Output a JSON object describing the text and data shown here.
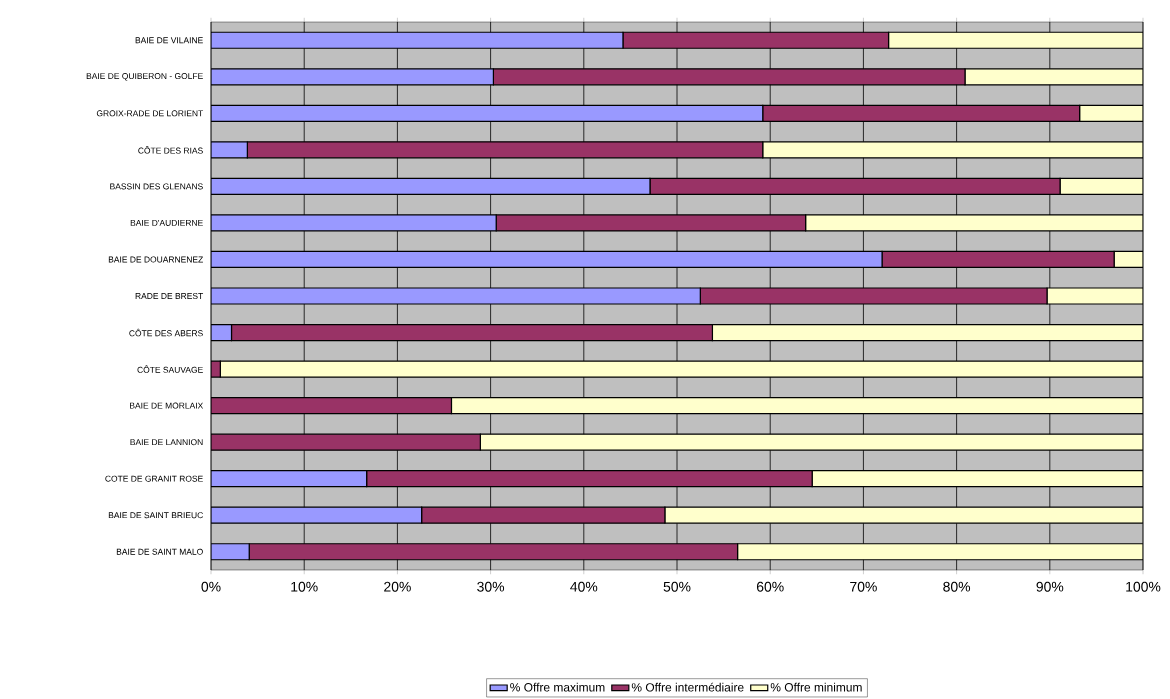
{
  "chart_data": {
    "type": "bar",
    "orientation": "horizontal",
    "stacked": true,
    "categories": [
      "BAIE DE VILAINE",
      "BAIE DE QUIBERON - GOLFE",
      "GROIX-RADE DE LORIENT",
      "CÔTE DES RIAS",
      "BASSIN DES GLENANS",
      "BAIE D'AUDIERNE",
      "BAIE DE DOUARNENEZ",
      "RADE DE BREST",
      "CÔTE DES ABERS",
      "CÔTE SAUVAGE",
      "BAIE DE MORLAIX",
      "BAIE DE LANNION",
      "COTE DE GRANIT ROSE",
      "BAIE DE SAINT BRIEUC",
      "BAIE DE SAINT MALO"
    ],
    "series": [
      {
        "name": "% Offre maximum",
        "color": "#9999ff",
        "values": [
          44.2,
          30.3,
          59.2,
          3.9,
          47.1,
          30.6,
          72.0,
          52.5,
          2.2,
          0,
          0,
          0,
          16.7,
          22.6,
          4.1
        ]
      },
      {
        "name": "% Offre intermédiaire",
        "color": "#993366",
        "values": [
          28.5,
          50.6,
          34.0,
          55.3,
          44.0,
          33.2,
          24.9,
          37.2,
          51.6,
          1.0,
          25.8,
          28.9,
          47.8,
          26.1,
          52.4
        ]
      },
      {
        "name": "% Offre minimum",
        "color": "#ffffcc",
        "values": [
          27.3,
          19.1,
          6.8,
          40.8,
          8.9,
          36.2,
          3.1,
          10.3,
          46.2,
          99.0,
          74.2,
          71.1,
          35.5,
          51.3,
          43.5
        ]
      }
    ],
    "xlim": [
      0,
      100
    ],
    "xticks": [
      {
        "value": 0,
        "label": "0%"
      },
      {
        "value": 10,
        "label": "10%"
      },
      {
        "value": 20,
        "label": "20%"
      },
      {
        "value": 30,
        "label": "30%"
      },
      {
        "value": 40,
        "label": "40%"
      },
      {
        "value": 50,
        "label": "50%"
      },
      {
        "value": 60,
        "label": "60%"
      },
      {
        "value": 70,
        "label": "70%"
      },
      {
        "value": 80,
        "label": "80%"
      },
      {
        "value": 90,
        "label": "90%"
      },
      {
        "value": 100,
        "label": "100%"
      }
    ],
    "grid": "x",
    "legend": "bottom"
  }
}
